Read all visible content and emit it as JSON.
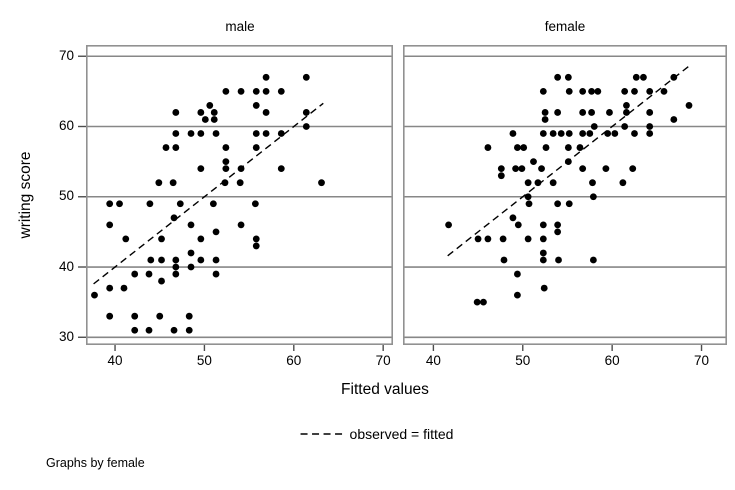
{
  "figure": {
    "note": "Graphs by female",
    "legend_label": "observed = fitted",
    "colors": {
      "marker": "#000000",
      "fit_line": "#000000",
      "grid": "#878787",
      "panel_border": "#919191",
      "tick": "#4d4d4d",
      "text": "#000000",
      "background": "#ffffff"
    }
  },
  "chart_data": {
    "type": "scatter",
    "title": "",
    "xlabel": "Fitted values",
    "ylabel": "writing score",
    "x_ticks": [
      40,
      50,
      60,
      70
    ],
    "y_ticks": [
      30,
      40,
      50,
      60,
      70
    ],
    "ylim": [
      28.9,
      71.6
    ],
    "grid": "horizontal",
    "legend_position": "bottom-center",
    "panels": [
      {
        "title": "male",
        "xlim": [
          36.75,
          71.1
        ],
        "line": {
          "label": "observed = fitted",
          "x1": 37.6,
          "y1": 37.6,
          "x2": 63.3,
          "y2": 63.3
        },
        "points": [
          [
            56.9,
            67
          ],
          [
            61.4,
            67
          ],
          [
            52.4,
            65
          ],
          [
            54.1,
            65
          ],
          [
            55.8,
            65
          ],
          [
            56.9,
            65
          ],
          [
            58.6,
            65
          ],
          [
            50.6,
            63
          ],
          [
            55.8,
            63
          ],
          [
            46.8,
            62
          ],
          [
            49.6,
            62
          ],
          [
            51.1,
            62
          ],
          [
            56.9,
            62
          ],
          [
            61.4,
            62
          ],
          [
            50.1,
            61
          ],
          [
            51.1,
            61
          ],
          [
            61.4,
            60
          ],
          [
            46.8,
            59
          ],
          [
            48.5,
            59
          ],
          [
            49.6,
            59
          ],
          [
            51.3,
            59
          ],
          [
            55.8,
            59
          ],
          [
            56.9,
            59
          ],
          [
            58.6,
            59
          ],
          [
            45.7,
            57
          ],
          [
            46.8,
            57
          ],
          [
            52.4,
            57
          ],
          [
            55.8,
            57
          ],
          [
            52.4,
            55
          ],
          [
            49.6,
            54
          ],
          [
            52.4,
            54
          ],
          [
            54.1,
            54
          ],
          [
            58.6,
            54
          ],
          [
            44.9,
            52
          ],
          [
            46.5,
            52
          ],
          [
            52.3,
            52
          ],
          [
            54.0,
            52
          ],
          [
            63.1,
            52
          ],
          [
            39.4,
            49
          ],
          [
            40.5,
            49
          ],
          [
            43.9,
            49
          ],
          [
            47.3,
            49
          ],
          [
            51.0,
            49
          ],
          [
            55.7,
            49
          ],
          [
            46.6,
            47
          ],
          [
            39.4,
            46
          ],
          [
            48.5,
            46
          ],
          [
            54.1,
            46
          ],
          [
            51.3,
            45
          ],
          [
            41.2,
            44
          ],
          [
            45.2,
            44
          ],
          [
            49.6,
            44
          ],
          [
            55.8,
            44
          ],
          [
            55.8,
            43
          ],
          [
            48.5,
            42
          ],
          [
            44.0,
            41
          ],
          [
            45.2,
            41
          ],
          [
            46.8,
            41
          ],
          [
            49.6,
            41
          ],
          [
            51.3,
            41
          ],
          [
            46.8,
            40
          ],
          [
            48.5,
            40
          ],
          [
            42.2,
            39
          ],
          [
            43.8,
            39
          ],
          [
            46.8,
            39
          ],
          [
            51.3,
            39
          ],
          [
            45.2,
            38
          ],
          [
            39.4,
            37
          ],
          [
            41.0,
            37
          ],
          [
            37.7,
            36
          ],
          [
            39.4,
            33
          ],
          [
            42.2,
            33
          ],
          [
            45.0,
            33
          ],
          [
            48.3,
            33
          ],
          [
            42.2,
            31
          ],
          [
            43.8,
            31
          ],
          [
            46.6,
            31
          ],
          [
            48.3,
            31
          ]
        ]
      },
      {
        "title": "female",
        "xlim": [
          36.6,
          72.85
        ],
        "line": {
          "label": "observed = fitted",
          "x1": 41.6,
          "y1": 41.6,
          "x2": 68.8,
          "y2": 68.8
        },
        "points": [
          [
            53.9,
            67
          ],
          [
            55.1,
            67
          ],
          [
            62.7,
            67
          ],
          [
            63.5,
            67
          ],
          [
            66.9,
            67
          ],
          [
            52.3,
            65
          ],
          [
            55.2,
            65
          ],
          [
            56.7,
            65
          ],
          [
            57.7,
            65
          ],
          [
            58.4,
            65
          ],
          [
            61.4,
            65
          ],
          [
            62.5,
            65
          ],
          [
            64.2,
            65
          ],
          [
            65.8,
            65
          ],
          [
            61.6,
            63
          ],
          [
            68.6,
            63
          ],
          [
            52.5,
            62
          ],
          [
            53.9,
            62
          ],
          [
            56.7,
            62
          ],
          [
            57.7,
            62
          ],
          [
            59.7,
            62
          ],
          [
            61.6,
            62
          ],
          [
            64.2,
            62
          ],
          [
            52.5,
            61
          ],
          [
            66.9,
            61
          ],
          [
            58.0,
            60
          ],
          [
            61.4,
            60
          ],
          [
            64.2,
            60
          ],
          [
            48.9,
            59
          ],
          [
            52.3,
            59
          ],
          [
            53.4,
            59
          ],
          [
            54.3,
            59
          ],
          [
            55.2,
            59
          ],
          [
            56.7,
            59
          ],
          [
            57.5,
            59
          ],
          [
            59.5,
            59
          ],
          [
            60.3,
            59
          ],
          [
            62.5,
            59
          ],
          [
            64.2,
            59
          ],
          [
            46.1,
            57
          ],
          [
            49.4,
            57
          ],
          [
            50.1,
            57
          ],
          [
            52.6,
            57
          ],
          [
            55.1,
            57
          ],
          [
            56.4,
            57
          ],
          [
            51.2,
            55
          ],
          [
            55.1,
            55
          ],
          [
            47.6,
            54
          ],
          [
            49.2,
            54
          ],
          [
            49.9,
            54
          ],
          [
            52.1,
            54
          ],
          [
            56.7,
            54
          ],
          [
            59.3,
            54
          ],
          [
            62.3,
            54
          ],
          [
            47.6,
            53
          ],
          [
            50.6,
            52
          ],
          [
            51.7,
            52
          ],
          [
            53.4,
            52
          ],
          [
            57.8,
            52
          ],
          [
            61.2,
            52
          ],
          [
            50.6,
            50
          ],
          [
            57.9,
            50
          ],
          [
            50.7,
            49
          ],
          [
            53.9,
            49
          ],
          [
            55.2,
            49
          ],
          [
            48.9,
            47
          ],
          [
            41.7,
            46
          ],
          [
            49.5,
            46
          ],
          [
            52.3,
            46
          ],
          [
            53.9,
            46
          ],
          [
            53.9,
            45
          ],
          [
            45.0,
            44
          ],
          [
            46.1,
            44
          ],
          [
            47.8,
            44
          ],
          [
            50.6,
            44
          ],
          [
            52.3,
            44
          ],
          [
            52.3,
            42
          ],
          [
            47.9,
            41
          ],
          [
            52.3,
            41
          ],
          [
            54.0,
            41
          ],
          [
            57.9,
            41
          ],
          [
            49.4,
            39
          ],
          [
            52.4,
            37
          ],
          [
            49.4,
            36
          ],
          [
            44.9,
            35
          ],
          [
            45.6,
            35
          ]
        ]
      }
    ]
  }
}
